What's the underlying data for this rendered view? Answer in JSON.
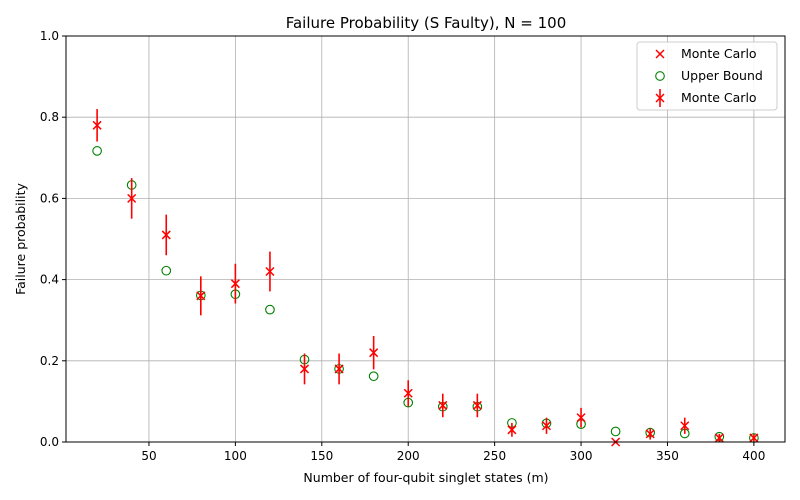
{
  "chart_data": {
    "type": "scatter",
    "title": "Failure Probability (S Faulty), N = 100",
    "xlabel": "Number of four-qubit singlet states (m)",
    "ylabel": "Failure probability",
    "xlim": [
      2,
      418
    ],
    "ylim": [
      0,
      1.0
    ],
    "x_ticks": [
      50,
      100,
      150,
      200,
      250,
      300,
      350,
      400
    ],
    "y_ticks": [
      0.0,
      0.2,
      0.4,
      0.6,
      0.8,
      1.0
    ],
    "x_tick_labels": [
      "50",
      "100",
      "150",
      "200",
      "250",
      "300",
      "350",
      "400"
    ],
    "y_tick_labels": [
      "0.0",
      "0.2",
      "0.4",
      "0.6",
      "0.8",
      "1.0"
    ],
    "grid": true,
    "legend_position": "top-right",
    "legend": [
      "Monte Carlo",
      "Upper Bound",
      "Monte Carlo"
    ],
    "colors": {
      "monte_carlo": "#ff0000",
      "upper_bound": "#008000",
      "grid": "#b0b0b0"
    },
    "series": [
      {
        "name": "Monte Carlo",
        "marker": "x",
        "x": [
          20,
          40,
          60,
          80,
          100,
          120,
          140,
          160,
          180,
          200,
          220,
          240,
          260,
          280,
          300,
          320,
          340,
          360,
          380,
          400
        ],
        "y": [
          0.78,
          0.6,
          0.51,
          0.36,
          0.39,
          0.42,
          0.18,
          0.18,
          0.22,
          0.12,
          0.09,
          0.09,
          0.03,
          0.04,
          0.06,
          0.0,
          0.02,
          0.04,
          0.01,
          0.01
        ],
        "yerr": [
          0.04,
          0.05,
          0.05,
          0.048,
          0.049,
          0.049,
          0.038,
          0.038,
          0.041,
          0.032,
          0.029,
          0.029,
          0.017,
          0.02,
          0.024,
          0.0,
          0.014,
          0.02,
          0.01,
          0.01
        ]
      },
      {
        "name": "Upper Bound",
        "marker": "o",
        "x": [
          20,
          40,
          60,
          80,
          100,
          120,
          140,
          160,
          180,
          200,
          220,
          240,
          260,
          280,
          300,
          320,
          340,
          360,
          380,
          400
        ],
        "y": [
          0.717,
          0.633,
          0.422,
          0.361,
          0.364,
          0.326,
          0.203,
          0.18,
          0.162,
          0.097,
          0.087,
          0.087,
          0.047,
          0.046,
          0.044,
          0.026,
          0.023,
          0.021,
          0.013,
          0.01
        ]
      }
    ]
  }
}
